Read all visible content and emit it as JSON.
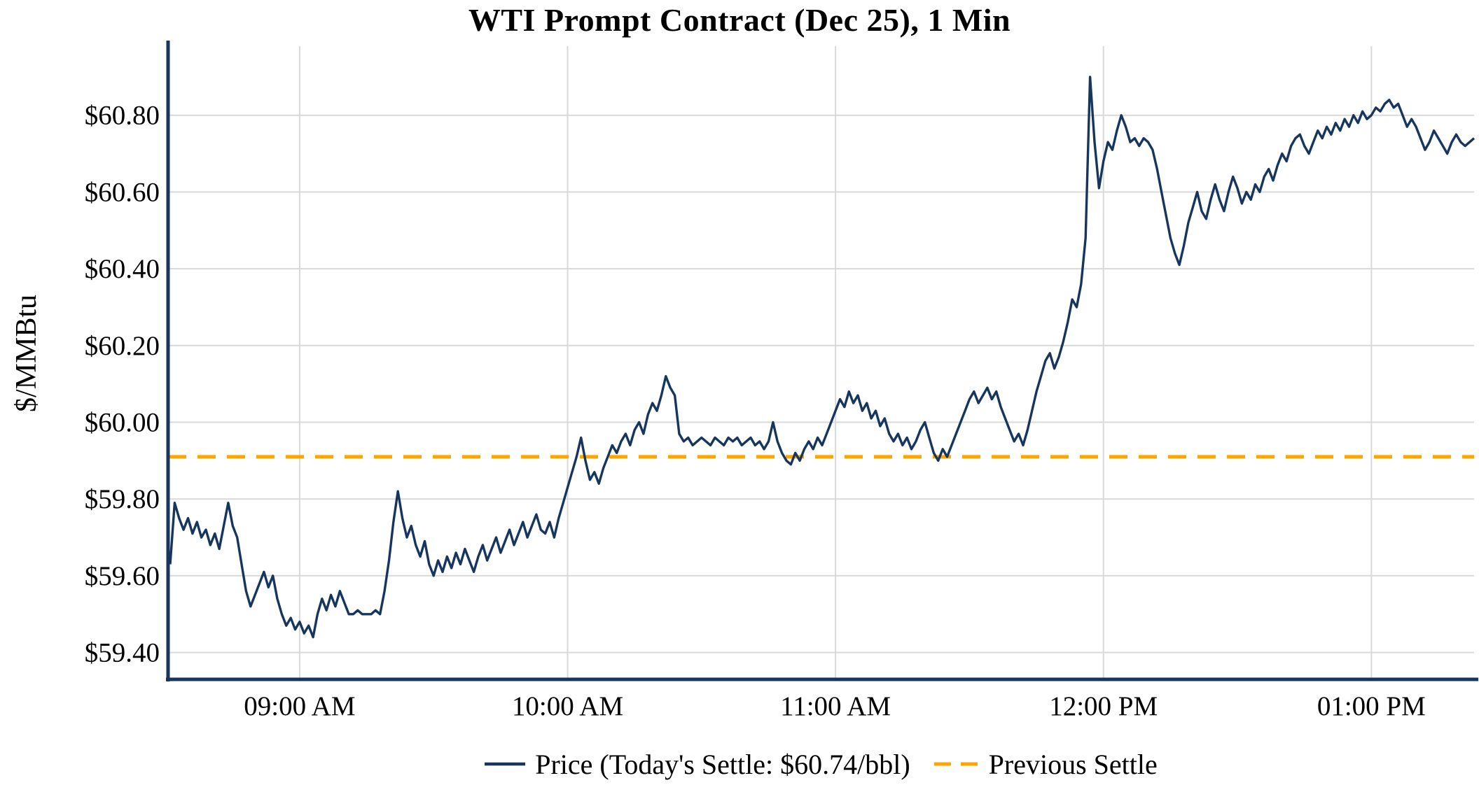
{
  "chart_data": {
    "type": "line",
    "title": "WTI Prompt Contract (Dec 25), 1 Min",
    "ylabel": "$/MMBtu",
    "xlabel": "",
    "grid": true,
    "legend_position": "bottom-center",
    "x_axis": {
      "unit": "minutes_since_midnight",
      "range": [
        511,
        803
      ],
      "ticks": [
        540,
        600,
        660,
        720,
        780
      ],
      "tick_labels": [
        "09:00 AM",
        "10:00 AM",
        "11:00 AM",
        "12:00 PM",
        "01:00 PM"
      ]
    },
    "y_axis": {
      "range": [
        59.33,
        60.98
      ],
      "ticks": [
        59.4,
        59.6,
        59.8,
        60.0,
        60.2,
        60.4,
        60.6,
        60.8
      ],
      "tick_labels": [
        "$59.40",
        "$59.60",
        "$59.80",
        "$60.00",
        "$60.20",
        "$60.40",
        "$60.60",
        "$60.80"
      ]
    },
    "previous_settle": 59.91,
    "todays_settle": 60.74,
    "series": [
      {
        "name": "Price",
        "legend_label": "Price (Today's Settle: $60.74/bbl)",
        "color": "#17365d",
        "style": "solid",
        "t_start_minutes": 511,
        "t_step_minutes": 1,
        "prices": [
          59.63,
          59.79,
          59.75,
          59.72,
          59.75,
          59.71,
          59.74,
          59.7,
          59.72,
          59.68,
          59.71,
          59.67,
          59.73,
          59.79,
          59.73,
          59.7,
          59.63,
          59.56,
          59.52,
          59.55,
          59.58,
          59.61,
          59.57,
          59.6,
          59.54,
          59.5,
          59.47,
          59.49,
          59.46,
          59.48,
          59.45,
          59.47,
          59.44,
          59.5,
          59.54,
          59.51,
          59.55,
          59.52,
          59.56,
          59.53,
          59.5,
          59.5,
          59.51,
          59.5,
          59.5,
          59.5,
          59.51,
          59.5,
          59.56,
          59.64,
          59.74,
          59.82,
          59.75,
          59.7,
          59.73,
          59.68,
          59.65,
          59.69,
          59.63,
          59.6,
          59.64,
          59.61,
          59.65,
          59.62,
          59.66,
          59.63,
          59.67,
          59.64,
          59.61,
          59.65,
          59.68,
          59.64,
          59.67,
          59.7,
          59.66,
          59.69,
          59.72,
          59.68,
          59.71,
          59.74,
          59.7,
          59.73,
          59.76,
          59.72,
          59.71,
          59.74,
          59.7,
          59.75,
          59.79,
          59.83,
          59.87,
          59.91,
          59.96,
          59.9,
          59.85,
          59.87,
          59.84,
          59.88,
          59.91,
          59.94,
          59.92,
          59.95,
          59.97,
          59.94,
          59.98,
          60.0,
          59.97,
          60.02,
          60.05,
          60.03,
          60.07,
          60.12,
          60.09,
          60.07,
          59.97,
          59.95,
          59.96,
          59.94,
          59.95,
          59.96,
          59.95,
          59.94,
          59.96,
          59.95,
          59.94,
          59.96,
          59.95,
          59.96,
          59.94,
          59.95,
          59.96,
          59.94,
          59.95,
          59.93,
          59.95,
          60.0,
          59.95,
          59.92,
          59.9,
          59.89,
          59.92,
          59.9,
          59.93,
          59.95,
          59.93,
          59.96,
          59.94,
          59.97,
          60.0,
          60.03,
          60.06,
          60.04,
          60.08,
          60.05,
          60.07,
          60.03,
          60.05,
          60.01,
          60.03,
          59.99,
          60.01,
          59.97,
          59.95,
          59.97,
          59.94,
          59.96,
          59.93,
          59.95,
          59.98,
          60.0,
          59.96,
          59.92,
          59.9,
          59.93,
          59.91,
          59.94,
          59.97,
          60.0,
          60.03,
          60.06,
          60.08,
          60.05,
          60.07,
          60.09,
          60.06,
          60.08,
          60.04,
          60.01,
          59.98,
          59.95,
          59.97,
          59.94,
          59.98,
          60.03,
          60.08,
          60.12,
          60.16,
          60.18,
          60.14,
          60.17,
          60.21,
          60.26,
          60.32,
          60.3,
          60.36,
          60.48,
          60.9,
          60.73,
          60.61,
          60.68,
          60.73,
          60.71,
          60.76,
          60.8,
          60.77,
          60.73,
          60.74,
          60.72,
          60.74,
          60.73,
          60.71,
          60.66,
          60.6,
          60.54,
          60.48,
          60.44,
          60.41,
          60.46,
          60.52,
          60.56,
          60.6,
          60.55,
          60.53,
          60.58,
          60.62,
          60.58,
          60.55,
          60.6,
          60.64,
          60.61,
          60.57,
          60.6,
          60.58,
          60.62,
          60.6,
          60.64,
          60.66,
          60.63,
          60.67,
          60.7,
          60.68,
          60.72,
          60.74,
          60.75,
          60.72,
          60.7,
          60.73,
          60.76,
          60.74,
          60.77,
          60.75,
          60.78,
          60.76,
          60.79,
          60.77,
          60.8,
          60.78,
          60.81,
          60.79,
          60.8,
          60.82,
          60.81,
          60.83,
          60.84,
          60.82,
          60.83,
          60.8,
          60.77,
          60.79,
          60.77,
          60.74,
          60.71,
          60.73,
          60.76,
          60.74,
          60.72,
          60.7,
          60.73,
          60.75,
          60.73,
          60.72,
          60.73,
          60.74
        ]
      },
      {
        "name": "Previous Settle",
        "legend_label": "Previous Settle",
        "color": "#FFA500",
        "style": "dashed",
        "value": 59.91
      }
    ]
  },
  "colors": {
    "price_line": "#17365d",
    "previous_settle": "#FFA500",
    "grid": "#d9d9d9",
    "axis": "#17365d",
    "text": "#000000",
    "background": "#ffffff"
  }
}
